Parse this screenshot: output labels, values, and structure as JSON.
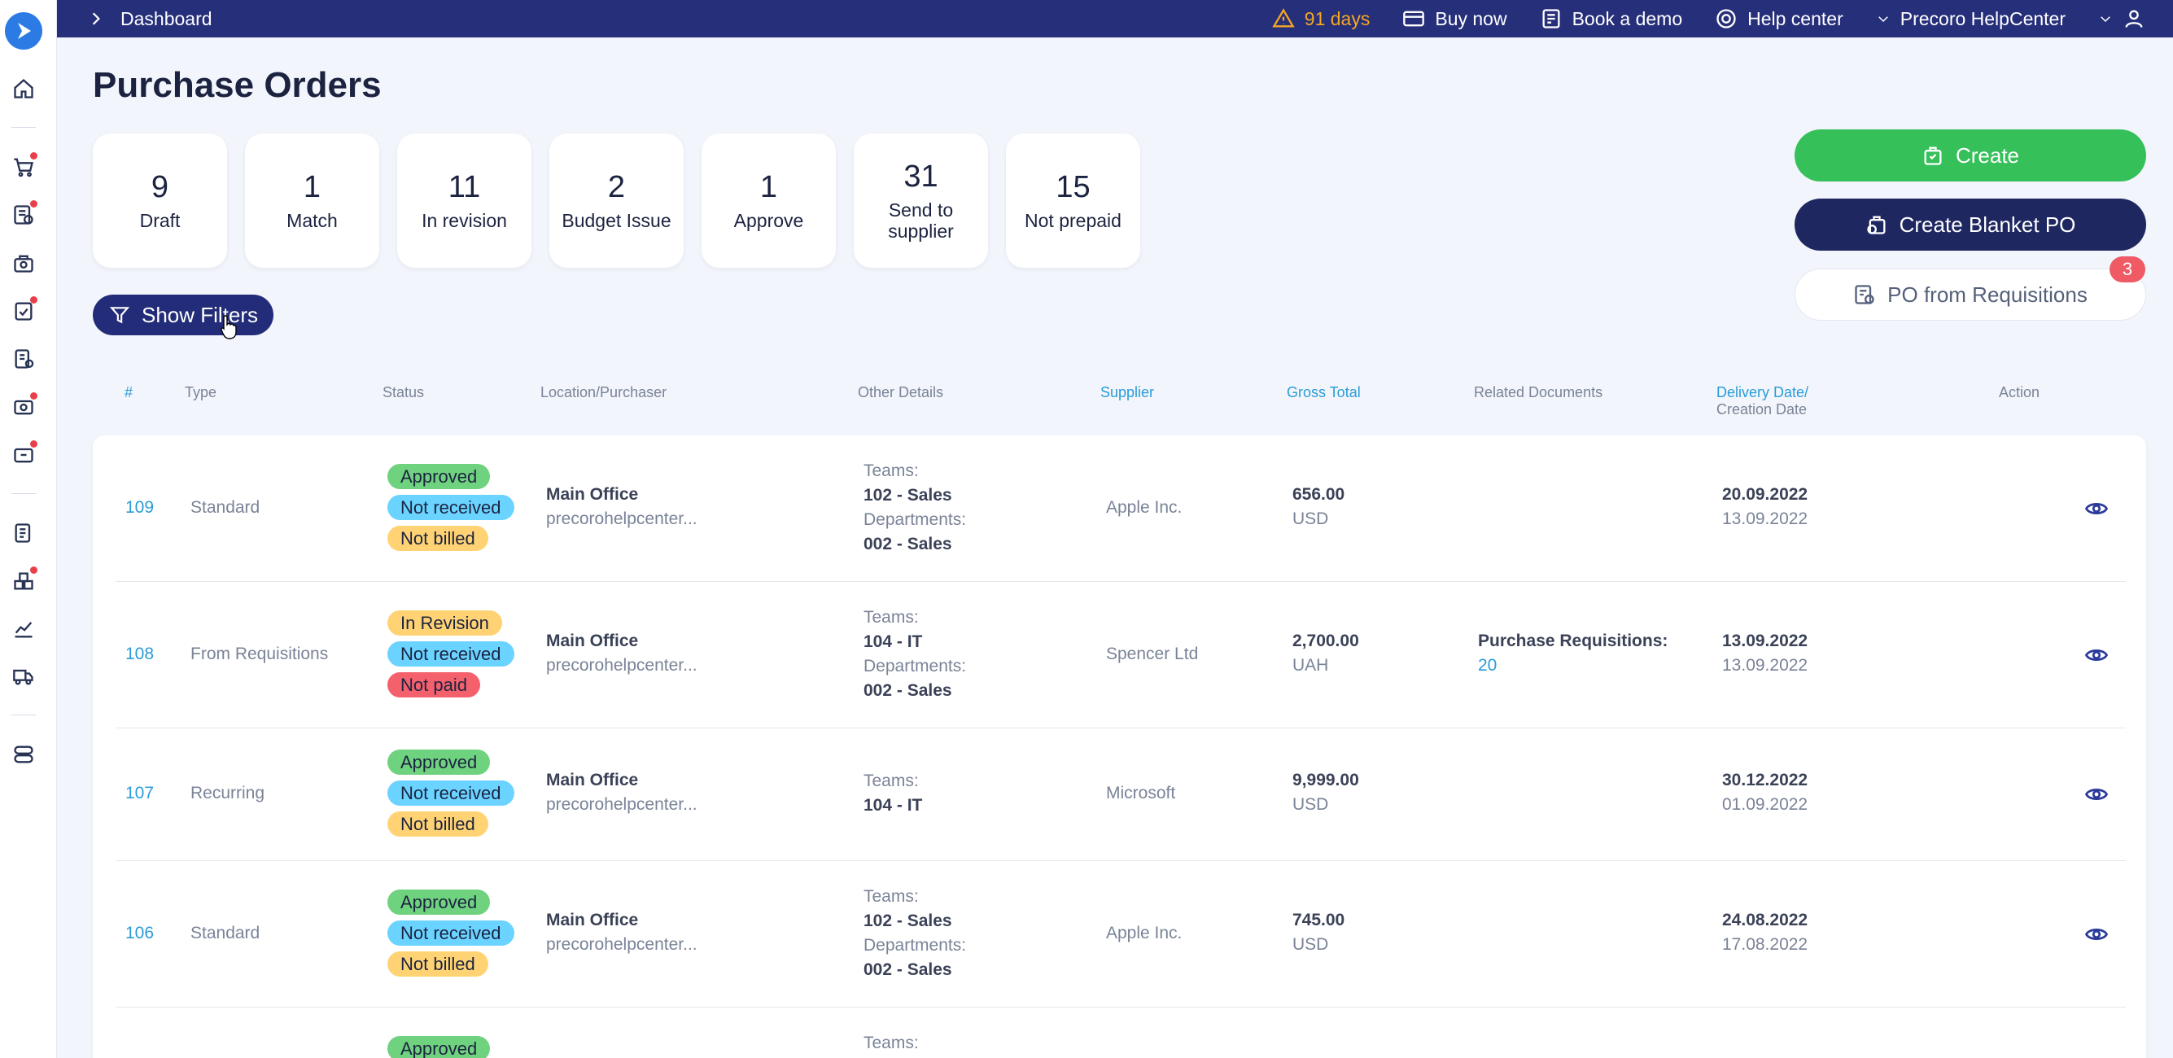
{
  "breadcrumb": "Dashboard",
  "topbar": {
    "trial": "91 days",
    "buy_now": "Buy now",
    "book_demo": "Book a demo",
    "help_center": "Help center",
    "company": "Precoro HelpCenter"
  },
  "page_title": "Purchase Orders",
  "stats": [
    {
      "num": "9",
      "label": "Draft"
    },
    {
      "num": "1",
      "label": "Match"
    },
    {
      "num": "11",
      "label": "In revision"
    },
    {
      "num": "2",
      "label": "Budget Issue"
    },
    {
      "num": "1",
      "label": "Approve"
    },
    {
      "num": "31",
      "label": "Send to supplier"
    },
    {
      "num": "15",
      "label": "Not prepaid"
    }
  ],
  "buttons": {
    "create": "Create",
    "create_blanket": "Create Blanket PO",
    "po_from_req": "PO from Requisitions",
    "po_from_req_badge": "3",
    "show_filters": "Show Filters"
  },
  "headers": {
    "num": "#",
    "type": "Type",
    "status": "Status",
    "location": "Location/Purchaser",
    "other": "Other Details",
    "supplier": "Supplier",
    "gross": "Gross Total",
    "related": "Related Documents",
    "delivery": "Delivery Date/",
    "creation": "Creation Date",
    "action": "Action"
  },
  "rows": [
    {
      "num": "109",
      "type": "Standard",
      "statuses": [
        "Approved",
        "Not received",
        "Not billed"
      ],
      "location": "Main Office",
      "purchaser": "precorohelpcenter...",
      "teams_label": "Teams:",
      "teams": "102 - Sales",
      "dept_label": "Departments:",
      "dept": "002 - Sales",
      "supplier": "Apple Inc.",
      "total": "656.00",
      "currency": "USD",
      "related_label": "",
      "related_value": "",
      "delivery": "20.09.2022",
      "created": "13.09.2022"
    },
    {
      "num": "108",
      "type": "From Requisitions",
      "statuses": [
        "In Revision",
        "Not received",
        "Not paid"
      ],
      "location": "Main Office",
      "purchaser": "precorohelpcenter...",
      "teams_label": "Teams:",
      "teams": "104 - IT",
      "dept_label": "Departments:",
      "dept": "002 - Sales",
      "supplier": "Spencer Ltd",
      "total": "2,700.00",
      "currency": "UAH",
      "related_label": "Purchase Requisitions:",
      "related_value": "20",
      "delivery": "13.09.2022",
      "created": "13.09.2022"
    },
    {
      "num": "107",
      "type": "Recurring",
      "statuses": [
        "Approved",
        "Not received",
        "Not billed"
      ],
      "location": "Main Office",
      "purchaser": "precorohelpcenter...",
      "teams_label": "Teams:",
      "teams": "104 - IT",
      "dept_label": "",
      "dept": "",
      "supplier": "Microsoft",
      "total": "9,999.00",
      "currency": "USD",
      "related_label": "",
      "related_value": "",
      "delivery": "30.12.2022",
      "created": "01.09.2022"
    },
    {
      "num": "106",
      "type": "Standard",
      "statuses": [
        "Approved",
        "Not received",
        "Not billed"
      ],
      "location": "Main Office",
      "purchaser": "precorohelpcenter...",
      "teams_label": "Teams:",
      "teams": "102 - Sales",
      "dept_label": "Departments:",
      "dept": "002 - Sales",
      "supplier": "Apple Inc.",
      "total": "745.00",
      "currency": "USD",
      "related_label": "",
      "related_value": "",
      "delivery": "24.08.2022",
      "created": "17.08.2022"
    },
    {
      "num": "",
      "type": "",
      "statuses": [
        "Approved"
      ],
      "location": "",
      "purchaser": "",
      "teams_label": "Teams:",
      "teams": "",
      "dept_label": "",
      "dept": "",
      "supplier": "",
      "total": "",
      "currency": "",
      "related_label": "",
      "related_value": "",
      "delivery": "",
      "created": ""
    }
  ],
  "colors": {
    "topbar": "#262f7a",
    "create": "#36c05a",
    "blanket": "#1f2761",
    "link": "#2a9cd8",
    "badge_green": "#6fd27f",
    "badge_blue": "#6ad3ff",
    "badge_yellow": "#ffd373",
    "badge_red": "#f4606c"
  }
}
